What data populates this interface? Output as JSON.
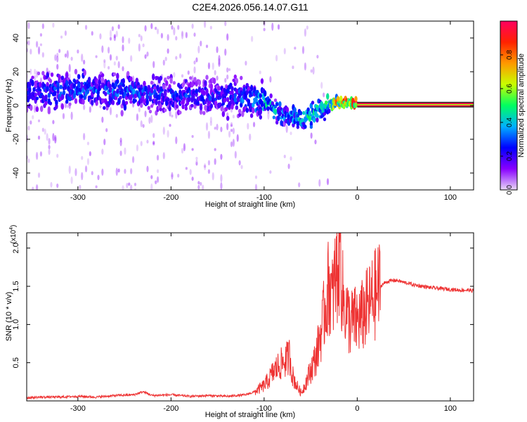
{
  "title": "C2E4.2026.056.14.07.G11",
  "colors": {
    "spectrogram_low": "#7a00e6",
    "spectrogram_high": "#ff0055",
    "snr_line": "#ee3333",
    "colorbar_stops": [
      "#e9d8f7",
      "#8800ff",
      "#0000ff",
      "#00b0ff",
      "#00ff60",
      "#c8ff00",
      "#ff9900",
      "#ff2200",
      "#ff0060"
    ]
  },
  "chart_data": [
    {
      "type": "heatmap",
      "title": "",
      "xlabel": "Height of straight line (km)",
      "ylabel": "Frequency (Hz)",
      "xlim": [
        -355,
        125
      ],
      "ylim": [
        -50,
        50
      ],
      "xticks": [
        {
          "value": -300,
          "label": "-300"
        },
        {
          "value": -200,
          "label": "-200"
        },
        {
          "value": -100,
          "label": "-100"
        },
        {
          "value": 0,
          "label": "0"
        },
        {
          "value": 100,
          "label": "100"
        }
      ],
      "yticks": [
        {
          "value": -40,
          "label": "-40"
        },
        {
          "value": -20,
          "label": "-20"
        },
        {
          "value": 0,
          "label": "0"
        },
        {
          "value": 20,
          "label": "20"
        },
        {
          "value": 40,
          "label": "40"
        }
      ],
      "ridge": {
        "x": [
          -355,
          -300,
          -250,
          -200,
          -150,
          -120,
          -100,
          -90,
          -80,
          -70,
          -60,
          -50,
          -40,
          -30,
          -20,
          -10,
          0,
          20,
          60,
          125
        ],
        "frequency": [
          8,
          9,
          8,
          6,
          5,
          5,
          2,
          -2,
          -5,
          -7,
          -8,
          -6,
          -2,
          1,
          2,
          2,
          1,
          0.5,
          0.5,
          0.5
        ],
        "amplitude": [
          0.3,
          0.35,
          0.35,
          0.3,
          0.3,
          0.35,
          0.45,
          0.45,
          0.4,
          0.4,
          0.45,
          0.5,
          0.5,
          0.6,
          0.85,
          0.9,
          0.95,
          0.97,
          0.97,
          0.97
        ]
      },
      "colorbar": {
        "label": "Normalized spectral amplitude",
        "range": [
          0,
          1
        ],
        "ticks": [
          {
            "value": 0.0,
            "label": "0.0"
          },
          {
            "value": 0.2,
            "label": "0.2"
          },
          {
            "value": 0.4,
            "label": "0.4"
          },
          {
            "value": 0.6,
            "label": "0.6"
          },
          {
            "value": 0.8,
            "label": "0.8"
          }
        ]
      }
    },
    {
      "type": "line",
      "title": "",
      "xlabel": "Height of straight line (km)",
      "ylabel": "SNR (10 * v/v)",
      "multiplier": "(x10",
      "multiplier_exp": "4",
      "multiplier_close": ")",
      "xlim": [
        -355,
        125
      ],
      "ylim": [
        0,
        2.2
      ],
      "xticks": [
        {
          "value": -300,
          "label": "-300"
        },
        {
          "value": -200,
          "label": "-200"
        },
        {
          "value": -100,
          "label": "-100"
        },
        {
          "value": 0,
          "label": "0"
        },
        {
          "value": 100,
          "label": "100"
        }
      ],
      "yticks": [
        {
          "value": 0.5,
          "label": "0.5"
        },
        {
          "value": 1.0,
          "label": "1.0"
        },
        {
          "value": 1.5,
          "label": "1.5"
        },
        {
          "value": 2.0,
          "label": "2.0"
        }
      ],
      "series": [
        {
          "x": [
            -355,
            -340,
            -320,
            -300,
            -280,
            -260,
            -240,
            -230,
            -220,
            -200,
            -180,
            -160,
            -140,
            -120,
            -110,
            -100,
            -95,
            -90,
            -85,
            -80,
            -75,
            -72,
            -70,
            -65,
            -60,
            -55,
            -50,
            -45,
            -42,
            -40,
            -37,
            -35,
            -32,
            -30,
            -27,
            -25,
            -22,
            -20,
            -18,
            -17,
            -15,
            -12,
            -10,
            -7,
            -5,
            -2,
            0,
            5,
            10,
            15,
            20,
            25,
            30,
            35,
            40,
            45,
            50,
            55,
            60,
            70,
            80,
            90,
            100,
            110,
            120,
            125
          ],
          "y": [
            0.04,
            0.05,
            0.05,
            0.06,
            0.05,
            0.07,
            0.08,
            0.12,
            0.07,
            0.08,
            0.06,
            0.07,
            0.06,
            0.08,
            0.12,
            0.2,
            0.28,
            0.38,
            0.45,
            0.5,
            0.55,
            0.6,
            0.35,
            0.2,
            0.1,
            0.25,
            0.4,
            0.55,
            0.7,
            0.85,
            1.0,
            1.2,
            1.4,
            1.55,
            1.3,
            1.5,
            1.7,
            1.8,
            2.2,
            1.6,
            1.3,
            1.2,
            1.1,
            1.0,
            1.05,
            1.05,
            1.05,
            1.1,
            1.2,
            1.3,
            1.4,
            1.5,
            1.55,
            1.57,
            1.58,
            1.57,
            1.55,
            1.54,
            1.52,
            1.5,
            1.48,
            1.47,
            1.46,
            1.45,
            1.45,
            1.44
          ]
        }
      ]
    }
  ]
}
